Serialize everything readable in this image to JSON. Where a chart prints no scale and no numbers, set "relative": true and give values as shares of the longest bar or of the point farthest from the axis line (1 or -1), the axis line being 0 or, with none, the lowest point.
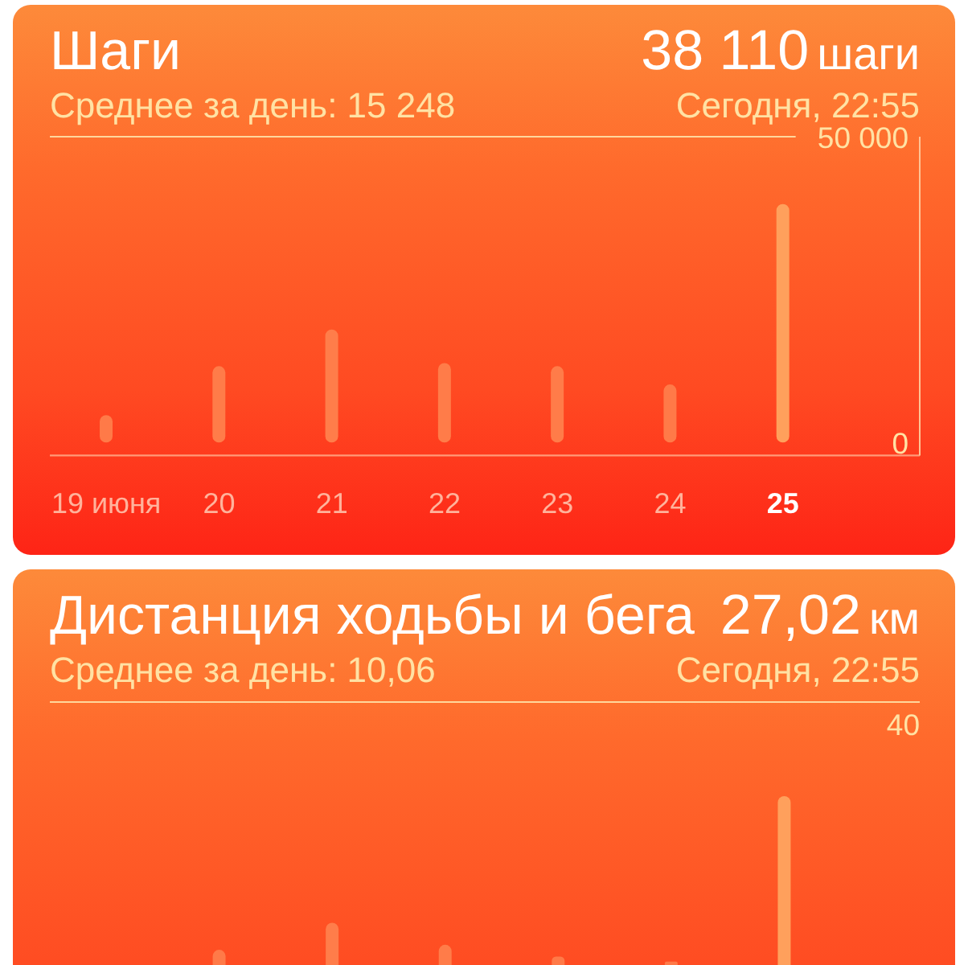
{
  "chart_data": [
    {
      "type": "bar",
      "title": "Шаги",
      "subtitle": "Среднее за день: 15 248",
      "annotations": [
        "38 110",
        "шаги",
        "Сегодня, 22:55"
      ],
      "categories": [
        "19 июня",
        "20",
        "21",
        "22",
        "23",
        "24",
        "25"
      ],
      "values": [
        4500,
        12500,
        18500,
        13000,
        12500,
        9500,
        39000
      ],
      "colors": [
        "#ff7a48",
        "#ff7c49",
        "#ff7d4a",
        "#ff7c49",
        "#ff7c49",
        "#ff7a48",
        "#ffa05c"
      ],
      "ylim": [
        0,
        50000
      ],
      "yticks": [
        0,
        {
          "value": 50000,
          "label": "50 000"
        }
      ]
    },
    {
      "type": "bar",
      "relative": true,
      "title": "Дистанция ходьбы и бега",
      "subtitle": "Среднее за день: 10,06",
      "annotations": [
        "27,02",
        "км",
        "Сегодня, 22:55",
        "40"
      ],
      "categories": [
        null,
        null,
        null,
        null,
        null,
        null,
        null
      ],
      "values": [
        null,
        0.09,
        0.25,
        0.12,
        0.05,
        0.02,
        1
      ],
      "colors": [
        null,
        "#ff7a48",
        "#ff7d4a",
        "#ff7c49",
        "#ff7a48",
        "#ff7a48",
        "#ffa05c"
      ]
    }
  ]
}
